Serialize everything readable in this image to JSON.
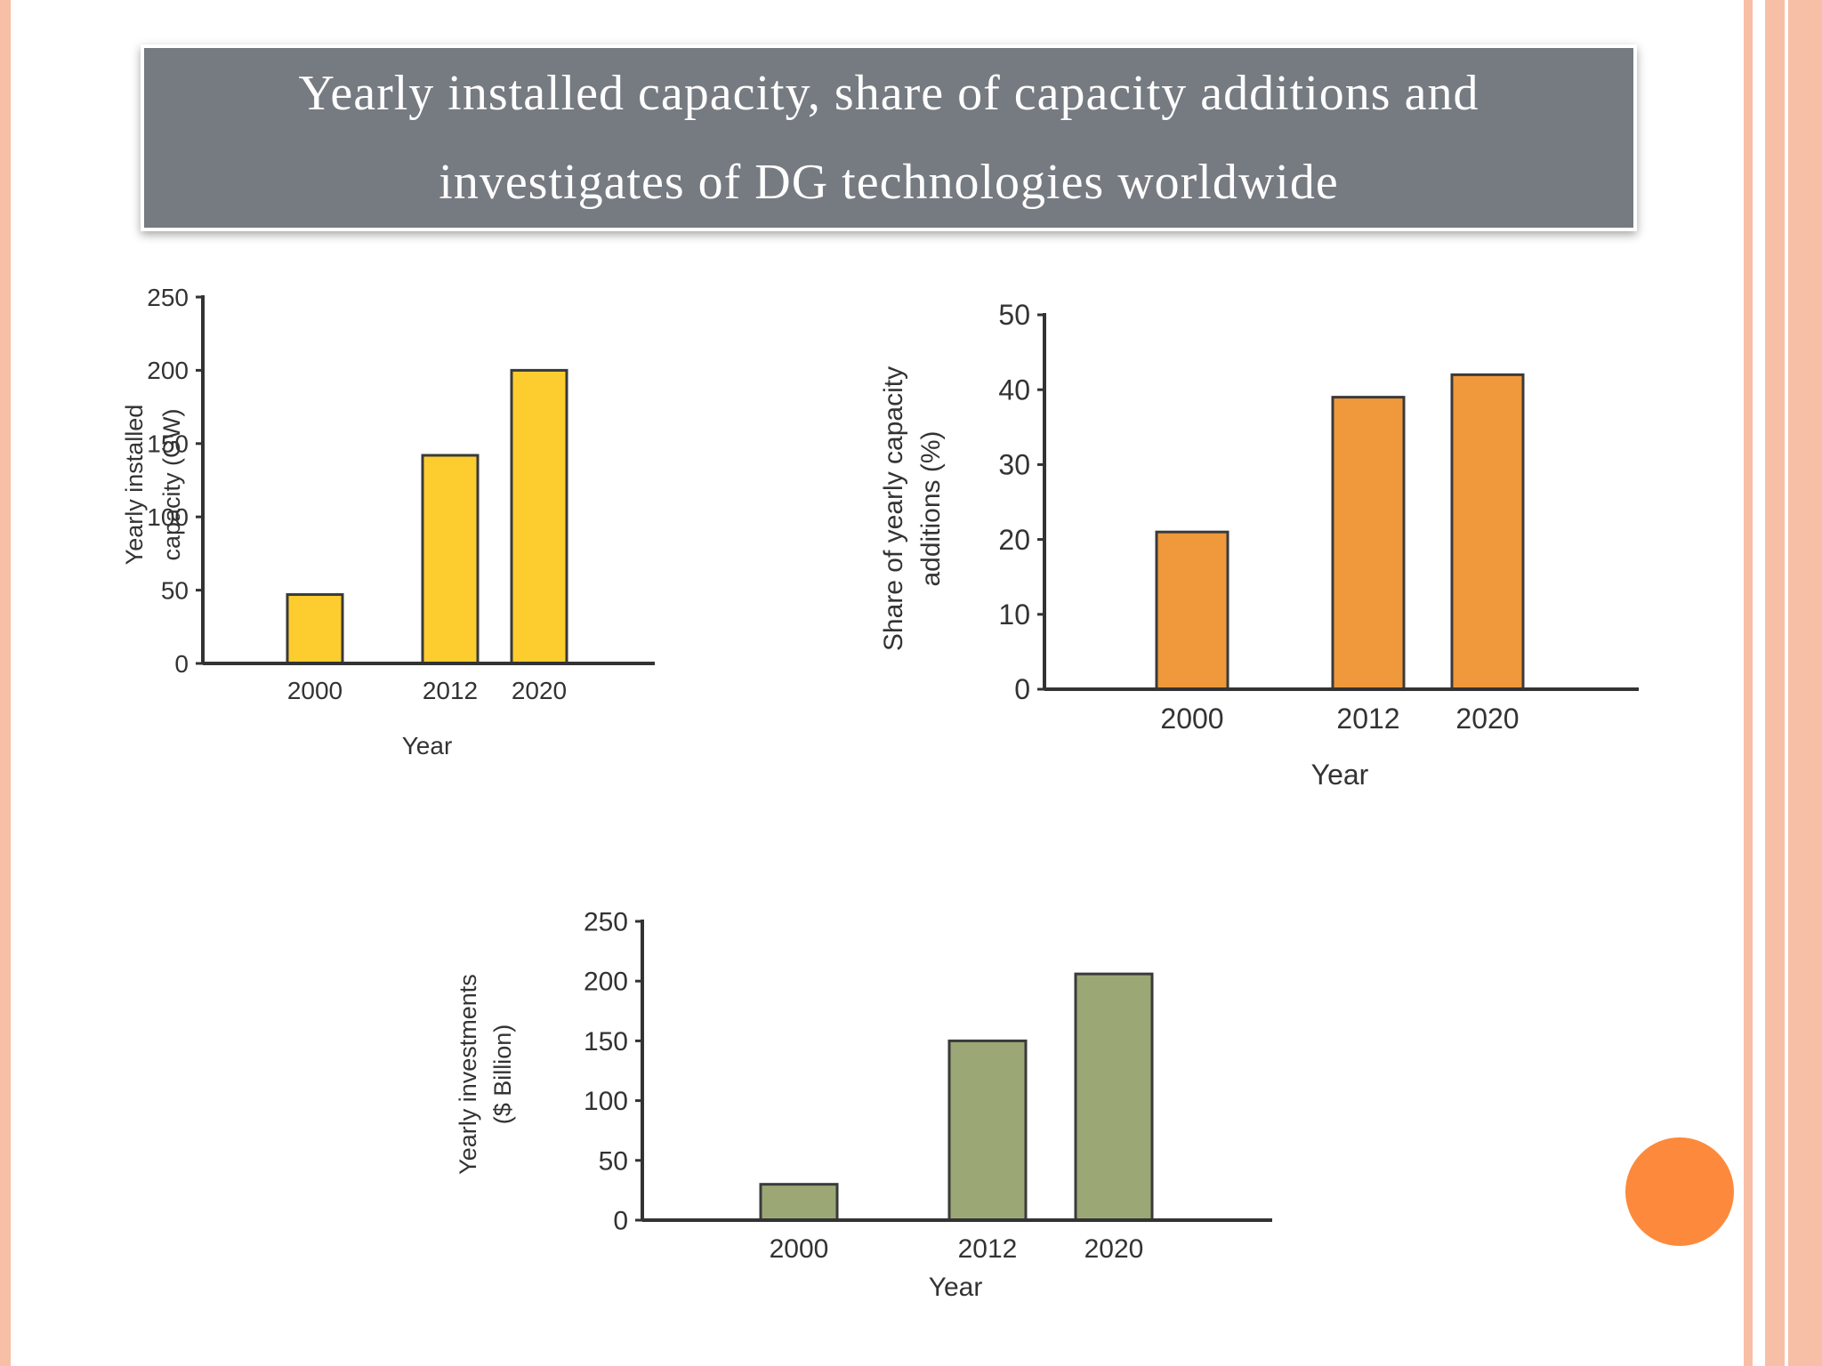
{
  "title": "Yearly installed capacity, share of capacity additions and investigates of DG technologies worldwide",
  "chart_data": [
    {
      "type": "bar",
      "categories": [
        "2000",
        "2012",
        "2020"
      ],
      "values": [
        47,
        142,
        200
      ],
      "xlabel": "Year",
      "ylabel": "Yearly installed capacity (GW)",
      "ylim": [
        0,
        250
      ],
      "yticks": [
        0,
        50,
        100,
        150,
        200,
        250
      ],
      "color": "#fdcd30",
      "grid": false
    },
    {
      "type": "bar",
      "categories": [
        "2000",
        "2012",
        "2020"
      ],
      "values": [
        21,
        39,
        42
      ],
      "xlabel": "Year",
      "ylabel": "Share of yearly capacity additions (%)",
      "ylim": [
        0,
        50
      ],
      "yticks": [
        0,
        10,
        20,
        30,
        40,
        50
      ],
      "color": "#ef993c",
      "grid": false
    },
    {
      "type": "bar",
      "categories": [
        "2000",
        "2012",
        "2020"
      ],
      "values": [
        30,
        150,
        206
      ],
      "xlabel": "Year",
      "ylabel": "Yearly investments ($ Billion)",
      "ylim": [
        0,
        250
      ],
      "yticks": [
        0,
        50,
        100,
        150,
        200,
        250
      ],
      "color": "#9ba875",
      "grid": false
    }
  ],
  "decor": {
    "border_color": "#f7bfa6",
    "title_bg": "#767a81",
    "circle_color": "#fd8a3c"
  }
}
